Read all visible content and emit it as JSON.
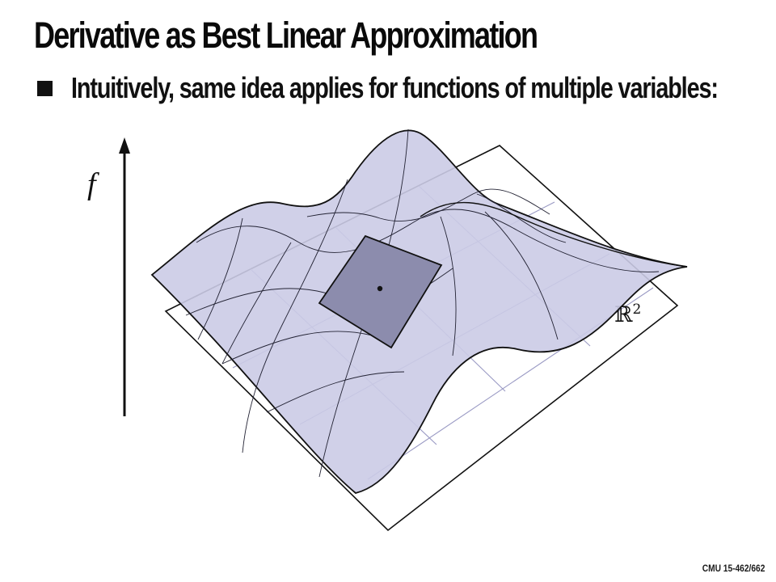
{
  "slide": {
    "title": "Derivative as Best Linear Approximation",
    "bullet": "Intuitively, same idea applies for functions of multiple variables:",
    "footer": "CMU 15-462/662"
  },
  "figure": {
    "axis_label": "f",
    "domain_label": "ℝ",
    "domain_exponent": "2",
    "colors": {
      "surface_fill": "#cbcbe6",
      "surface_stroke": "#111111",
      "tangent_plane_fill": "#8c8cad",
      "plane_grid": "#9a9ac4",
      "axis": "#111111"
    }
  }
}
